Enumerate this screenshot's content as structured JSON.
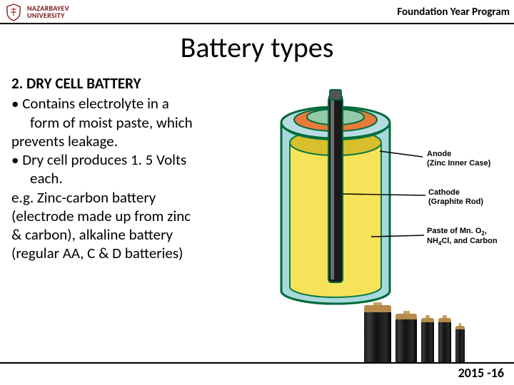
{
  "header": {
    "org_line1": "NAZARBAYEV",
    "org_line2": "UNIVERSITY",
    "right": "Foundation Year Program",
    "logo_color": "#7a1210"
  },
  "title": "Battery types",
  "body": {
    "heading": "2. DRY CELL BATTERY",
    "bullet1a": "Contains electrolyte in a",
    "bullet1b": "form of moist paste, which",
    "line_prevents": "prevents leakage.",
    "bullet2a": "Dry cell produces 1. 5 Volts",
    "bullet2b": "each.",
    "eg": " e.g. Zinc-carbon battery",
    "line4": "(electrode made up from zinc",
    "line5": "& carbon), alkaline battery",
    "line6": "(regular AA, C & D batteries)"
  },
  "diagram": {
    "label_anode_l1": "Anode",
    "label_anode_l2": "(Zinc Inner Case)",
    "label_cathode_l1": "Cathode",
    "label_cathode_l2": "(Graphite Rod)",
    "label_paste_l1": "Paste of Mn. O",
    "label_paste_sub": "2",
    "label_paste_tail": ",",
    "label_paste_l2a": "NH",
    "label_paste_sub2": "4",
    "label_paste_l2b": "Cl, and Carbon",
    "colors": {
      "outline": "#006a3a",
      "cap_outer": "#b6dce1",
      "cap_mid": "#e87a3a",
      "cap_inner": "#93c9a6",
      "rod": "#1a1a1a",
      "rod_hilite": "#6b6b6b",
      "inner_wall": "#a7d9dc",
      "paste": "#f6e35a",
      "paste_shadow": "#d8bf2e",
      "base": "#d7c89b",
      "section_edge": "#0e7a3f"
    }
  },
  "batteries": {
    "items": [
      {
        "w": 38,
        "top_h": 10,
        "body_h": 72
      },
      {
        "w": 30,
        "top_h": 8,
        "body_h": 62
      },
      {
        "w": 18,
        "top_h": 6,
        "body_h": 58
      },
      {
        "w": 18,
        "top_h": 6,
        "body_h": 58
      },
      {
        "w": 13,
        "top_h": 5,
        "body_h": 48
      }
    ],
    "top_color": "#b68a4a",
    "body_gradient": [
      "#1a1a1a",
      "#3b3b3b",
      "#111",
      "#2a2a2a",
      "#000"
    ]
  },
  "footer": "2015 -16"
}
